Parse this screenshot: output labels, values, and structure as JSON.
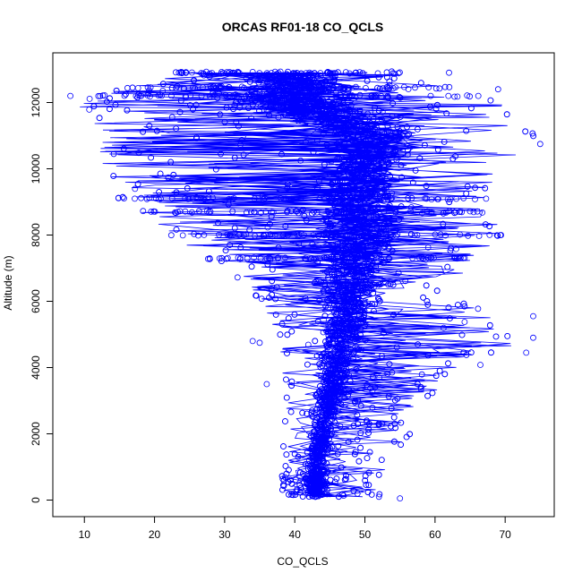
{
  "chart_data": {
    "type": "scatter",
    "title": "ORCAS RF01-18 CO_QCLS",
    "xlabel": "CO_QCLS",
    "ylabel": "Altitude (m)",
    "xlim": [
      5.5,
      77
    ],
    "ylim": [
      -500,
      13500
    ],
    "x_ticks": [
      10,
      20,
      30,
      40,
      50,
      60,
      70
    ],
    "y_ticks": [
      0,
      2000,
      4000,
      6000,
      8000,
      10000,
      12000
    ],
    "marker": "open-circle",
    "connected": true,
    "grid": false,
    "legend": "none",
    "series_color": "#0000ff",
    "profile_envelope": [
      {
        "altitude": 100,
        "co_min": 38,
        "co_mode": 43,
        "co_max": 52
      },
      {
        "altitude": 1000,
        "co_min": 38,
        "co_mode": 43,
        "co_max": 53
      },
      {
        "altitude": 2000,
        "co_min": 38.5,
        "co_mode": 44,
        "co_max": 57
      },
      {
        "altitude": 3000,
        "co_min": 38.5,
        "co_mode": 45,
        "co_max": 58
      },
      {
        "altitude": 4000,
        "co_min": 38,
        "co_mode": 46,
        "co_max": 66
      },
      {
        "altitude": 5000,
        "co_min": 37,
        "co_mode": 47,
        "co_max": 74
      },
      {
        "altitude": 6000,
        "co_min": 35,
        "co_mode": 48,
        "co_max": 64
      },
      {
        "altitude": 7000,
        "co_min": 30,
        "co_mode": 48,
        "co_max": 64
      },
      {
        "altitude": 8000,
        "co_min": 22,
        "co_mode": 49,
        "co_max": 70
      },
      {
        "altitude": 9000,
        "co_min": 15,
        "co_mode": 49,
        "co_max": 67
      },
      {
        "altitude": 10000,
        "co_min": 12,
        "co_mode": 50,
        "co_max": 70
      },
      {
        "altitude": 11000,
        "co_min": 11,
        "co_mode": 52,
        "co_max": 75
      },
      {
        "altitude": 12000,
        "co_min": 8,
        "co_mode": 40,
        "co_max": 70
      },
      {
        "altitude": 12900,
        "co_min": 23,
        "co_mode": 40,
        "co_max": 55
      }
    ],
    "outliers": [
      {
        "x": 75,
        "y": 10750
      },
      {
        "x": 74,
        "y": 4900
      },
      {
        "x": 74,
        "y": 5550
      },
      {
        "x": 73,
        "y": 4450
      },
      {
        "x": 69,
        "y": 12400
      },
      {
        "x": 55,
        "y": 50
      },
      {
        "x": 52,
        "y": 100
      },
      {
        "x": 34,
        "y": 4800
      },
      {
        "x": 35,
        "y": 4750
      },
      {
        "x": 8,
        "y": 12200
      },
      {
        "x": 36,
        "y": 3500
      },
      {
        "x": 62,
        "y": 12900
      }
    ]
  }
}
